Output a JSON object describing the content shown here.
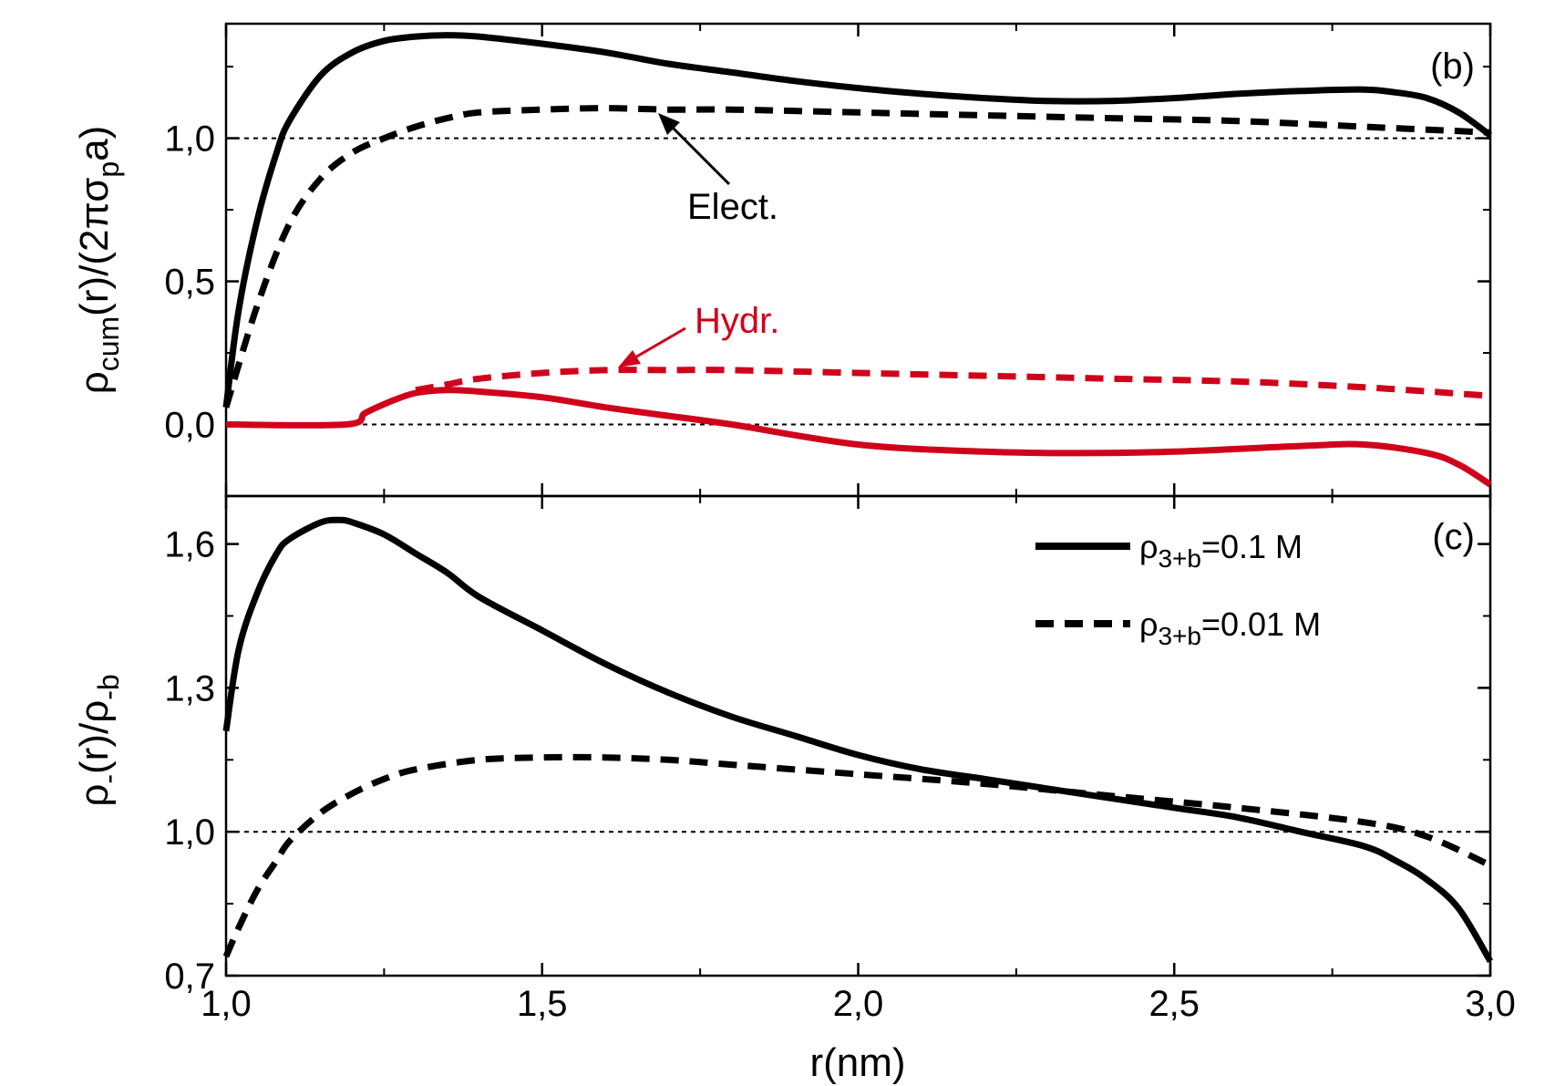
{
  "chart_data": [
    {
      "panel": "(b)",
      "type": "line",
      "ylabel_parts": [
        "ρ",
        "cum",
        "(r)/(2πσ",
        "p",
        "a)"
      ],
      "xlim": [
        1.0,
        3.0
      ],
      "ylim": [
        -0.25,
        1.4
      ],
      "yticks": [
        0.0,
        0.5,
        1.0
      ],
      "ytick_labels": [
        "0,0",
        "0,5",
        "1,0"
      ],
      "reference_lines": [
        0.0,
        1.0
      ],
      "grid": false,
      "annotations": [
        {
          "text": "Elect.",
          "color": "#000000",
          "arrow_to": [
            1.68,
            1.1
          ]
        },
        {
          "text": "Hydr.",
          "color": "#d0021b",
          "arrow_to": [
            1.62,
            0.19
          ]
        }
      ],
      "series": [
        {
          "group": "Elect.",
          "style": "solid",
          "color": "#000000",
          "x": [
            1.0,
            1.02,
            1.05,
            1.08,
            1.1,
            1.15,
            1.2,
            1.25,
            1.3,
            1.35,
            1.4,
            1.5,
            1.6,
            1.7,
            1.8,
            1.9,
            2.0,
            2.1,
            2.2,
            2.3,
            2.4,
            2.5,
            2.6,
            2.7,
            2.8,
            2.85,
            2.9,
            2.95,
            3.0
          ],
          "y": [
            0.06,
            0.4,
            0.72,
            0.95,
            1.06,
            1.22,
            1.3,
            1.34,
            1.355,
            1.36,
            1.355,
            1.33,
            1.3,
            1.26,
            1.23,
            1.2,
            1.175,
            1.155,
            1.14,
            1.13,
            1.13,
            1.14,
            1.155,
            1.165,
            1.17,
            1.16,
            1.14,
            1.09,
            1.01
          ]
        },
        {
          "group": "Elect.",
          "style": "dashed",
          "color": "#000000",
          "x": [
            1.0,
            1.05,
            1.1,
            1.15,
            1.2,
            1.25,
            1.3,
            1.35,
            1.4,
            1.5,
            1.6,
            1.7,
            1.8,
            2.0,
            2.2,
            2.4,
            2.6,
            2.8,
            3.0
          ],
          "y": [
            0.06,
            0.42,
            0.7,
            0.86,
            0.95,
            1.0,
            1.04,
            1.07,
            1.09,
            1.1,
            1.105,
            1.1,
            1.1,
            1.09,
            1.08,
            1.07,
            1.06,
            1.04,
            1.02
          ]
        },
        {
          "group": "Hydr.",
          "style": "solid",
          "color": "#d0021b",
          "x": [
            1.0,
            1.19,
            1.22,
            1.26,
            1.3,
            1.35,
            1.4,
            1.5,
            1.6,
            1.7,
            1.8,
            2.0,
            2.2,
            2.35,
            2.5,
            2.7,
            2.8,
            2.9,
            2.95,
            3.0
          ],
          "y": [
            0.0,
            0.0,
            0.04,
            0.08,
            0.11,
            0.12,
            0.115,
            0.095,
            0.06,
            0.03,
            0.0,
            -0.07,
            -0.095,
            -0.1,
            -0.095,
            -0.075,
            -0.07,
            -0.1,
            -0.14,
            -0.21
          ]
        },
        {
          "group": "Hydr.",
          "style": "dashed",
          "color": "#d0021b",
          "x": [
            1.3,
            1.35,
            1.4,
            1.5,
            1.6,
            1.7,
            1.8,
            2.0,
            2.2,
            2.4,
            2.6,
            2.8,
            3.0
          ],
          "y": [
            0.12,
            0.14,
            0.16,
            0.18,
            0.19,
            0.19,
            0.19,
            0.18,
            0.17,
            0.16,
            0.15,
            0.13,
            0.1
          ]
        }
      ]
    },
    {
      "panel": "(c)",
      "type": "line",
      "xlabel": "r(nm)",
      "ylabel_parts": [
        "ρ",
        "-",
        "(r)/ρ",
        "-b",
        ""
      ],
      "xlim": [
        1.0,
        3.0
      ],
      "ylim": [
        0.7,
        1.7
      ],
      "xticks": [
        1.0,
        1.5,
        2.0,
        2.5,
        3.0
      ],
      "xtick_labels": [
        "1,0",
        "1,5",
        "2,0",
        "2,5",
        "3,0"
      ],
      "yticks": [
        0.7,
        1.0,
        1.3,
        1.6
      ],
      "ytick_labels": [
        "0,7",
        "1,0",
        "1,3",
        "1,6"
      ],
      "reference_lines": [
        1.0
      ],
      "grid": false,
      "legend_position": "top-right",
      "series": [
        {
          "legend_parts": [
            "ρ",
            "3+b",
            "=0.1 M"
          ],
          "style": "solid",
          "color": "#000000",
          "x": [
            1.0,
            1.02,
            1.05,
            1.08,
            1.1,
            1.15,
            1.18,
            1.2,
            1.25,
            1.3,
            1.35,
            1.4,
            1.5,
            1.6,
            1.7,
            1.8,
            1.9,
            2.0,
            2.1,
            2.2,
            2.3,
            2.4,
            2.5,
            2.6,
            2.7,
            2.8,
            2.85,
            2.9,
            2.95,
            3.0
          ],
          "y": [
            1.21,
            1.38,
            1.5,
            1.58,
            1.61,
            1.645,
            1.65,
            1.645,
            1.62,
            1.58,
            1.54,
            1.49,
            1.42,
            1.35,
            1.29,
            1.24,
            1.2,
            1.16,
            1.13,
            1.11,
            1.09,
            1.07,
            1.05,
            1.03,
            1.0,
            0.97,
            0.94,
            0.9,
            0.84,
            0.73
          ]
        },
        {
          "legend_parts": [
            "ρ",
            "3+b",
            "=0.01 M"
          ],
          "style": "dashed",
          "color": "#000000",
          "x": [
            1.0,
            1.02,
            1.05,
            1.08,
            1.1,
            1.15,
            1.2,
            1.25,
            1.3,
            1.4,
            1.5,
            1.6,
            1.7,
            1.8,
            2.0,
            2.2,
            2.4,
            2.6,
            2.8,
            2.9,
            3.0
          ],
          "y": [
            0.74,
            0.8,
            0.88,
            0.94,
            0.98,
            1.04,
            1.08,
            1.11,
            1.13,
            1.15,
            1.155,
            1.155,
            1.15,
            1.14,
            1.12,
            1.1,
            1.075,
            1.05,
            1.02,
            0.99,
            0.93
          ]
        }
      ]
    }
  ]
}
